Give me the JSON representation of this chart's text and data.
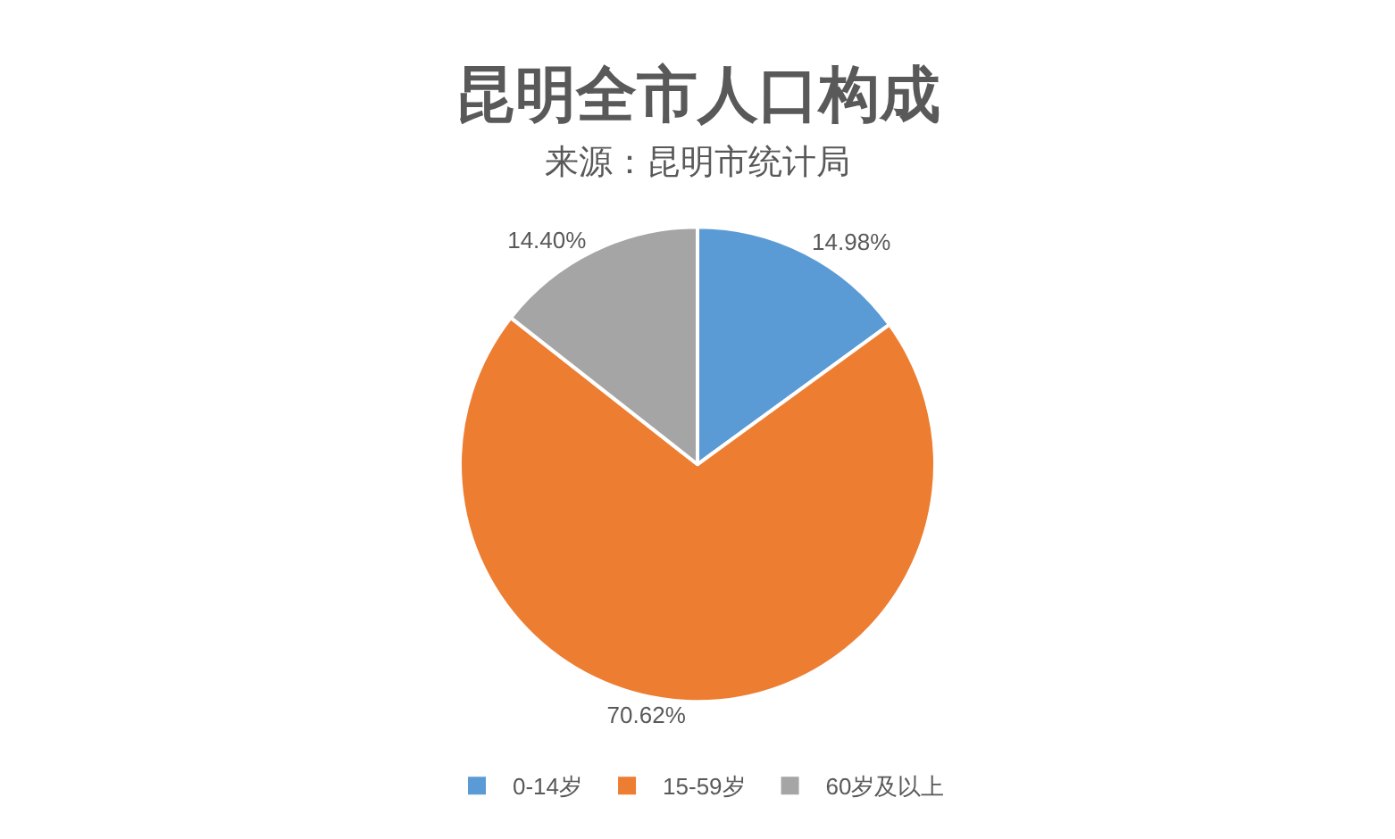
{
  "chart_data": {
    "type": "pie",
    "title": "昆明全市人口构成",
    "subtitle": "来源：昆明市统计局",
    "categories": [
      "0-14岁",
      "15-59岁",
      "60岁及以上"
    ],
    "values": [
      14.98,
      70.62,
      14.4
    ],
    "colors": [
      "#5b9bd5",
      "#ed7d31",
      "#a5a5a5"
    ],
    "value_labels": [
      "14.98%",
      "70.62%",
      "14.40%"
    ],
    "legend": "bottom"
  }
}
